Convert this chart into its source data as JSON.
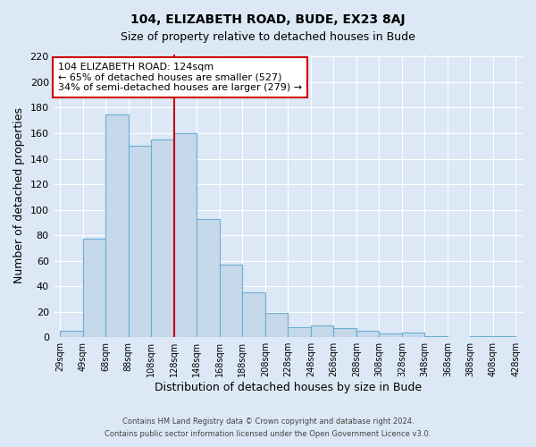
{
  "title": "104, ELIZABETH ROAD, BUDE, EX23 8AJ",
  "subtitle": "Size of property relative to detached houses in Bude",
  "xlabel": "Distribution of detached houses by size in Bude",
  "ylabel": "Number of detached properties",
  "bin_labels": [
    "29sqm",
    "49sqm",
    "68sqm",
    "88sqm",
    "108sqm",
    "128sqm",
    "148sqm",
    "168sqm",
    "188sqm",
    "208sqm",
    "228sqm",
    "248sqm",
    "268sqm",
    "288sqm",
    "308sqm",
    "328sqm",
    "348sqm",
    "368sqm",
    "388sqm",
    "408sqm",
    "428sqm"
  ],
  "bar_heights": [
    5,
    77,
    175,
    150,
    155,
    160,
    93,
    57,
    35,
    19,
    8,
    9,
    7,
    5,
    3,
    4,
    1,
    0,
    1,
    1
  ],
  "bar_color": "#c5d9ea",
  "bar_edgecolor": "#6aadd5",
  "vline_index": 5,
  "vline_color": "#cc0000",
  "annotation_text": "104 ELIZABETH ROAD: 124sqm\n← 65% of detached houses are smaller (527)\n34% of semi-detached houses are larger (279) →",
  "annotation_box_edgecolor": "#cc0000",
  "annotation_box_facecolor": "#ffffff",
  "ylim": [
    0,
    222
  ],
  "yticks": [
    0,
    20,
    40,
    60,
    80,
    100,
    120,
    140,
    160,
    180,
    200,
    220
  ],
  "bg_color": "#dce8f5",
  "plot_bg_color": "#dce8f5",
  "grid_color": "#ffffff",
  "title_fontsize": 10,
  "subtitle_fontsize": 9,
  "footer_line1": "Contains HM Land Registry data © Crown copyright and database right 2024.",
  "footer_line2": "Contains public sector information licensed under the Open Government Licence v3.0."
}
